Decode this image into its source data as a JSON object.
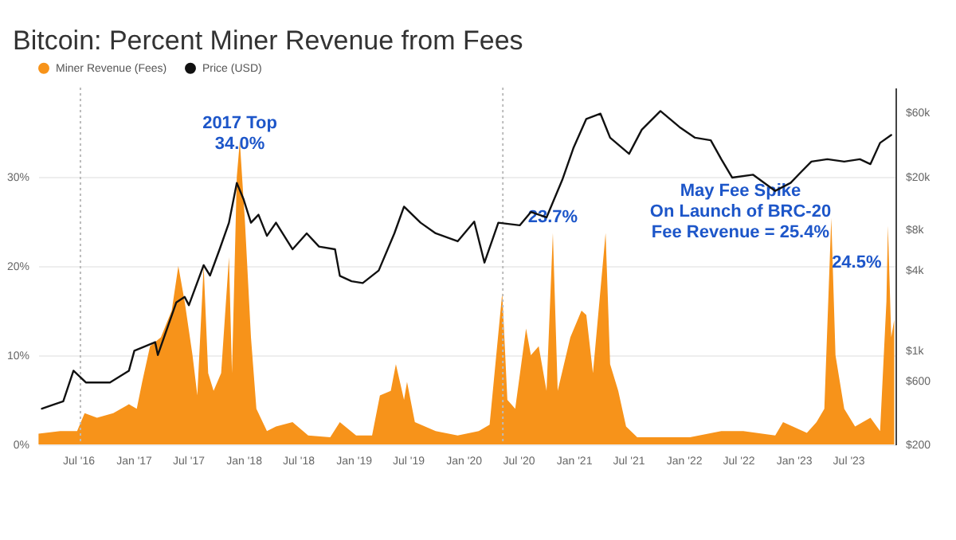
{
  "chart_data": {
    "type": "area",
    "title": "Bitcoin: Percent Miner Revenue from Fees",
    "xlim": [
      "2016-02-20",
      "2023-12-05"
    ],
    "xticks": [
      {
        "value": "2016-07-01",
        "label": "Jul '16"
      },
      {
        "value": "2017-01-01",
        "label": "Jan '17"
      },
      {
        "value": "2017-07-01",
        "label": "Jul '17"
      },
      {
        "value": "2018-01-01",
        "label": "Jan '18"
      },
      {
        "value": "2018-07-01",
        "label": "Jul '18"
      },
      {
        "value": "2019-01-01",
        "label": "Jan '19"
      },
      {
        "value": "2019-07-01",
        "label": "Jul '19"
      },
      {
        "value": "2020-01-01",
        "label": "Jan '20"
      },
      {
        "value": "2020-07-01",
        "label": "Jul '20"
      },
      {
        "value": "2021-01-01",
        "label": "Jan '21"
      },
      {
        "value": "2021-07-01",
        "label": "Jul '21"
      },
      {
        "value": "2022-01-01",
        "label": "Jan '22"
      },
      {
        "value": "2022-07-01",
        "label": "Jul '22"
      },
      {
        "value": "2023-01-01",
        "label": "Jan '23"
      },
      {
        "value": "2023-07-01",
        "label": "Jul '23"
      }
    ],
    "ylim": [
      0,
      40
    ],
    "yticks": [
      {
        "value": 0,
        "label": "0%"
      },
      {
        "value": 10,
        "label": "10%"
      },
      {
        "value": 20,
        "label": "20%"
      },
      {
        "value": 30,
        "label": "30%"
      }
    ],
    "y2lim": [
      200,
      92000
    ],
    "y2ticks": [
      {
        "value": 200,
        "label": "$200"
      },
      {
        "value": 600,
        "label": "$600"
      },
      {
        "value": 1000,
        "label": "$1k"
      },
      {
        "value": 4000,
        "label": "$4k"
      },
      {
        "value": 8000,
        "label": "$8k"
      },
      {
        "value": 20000,
        "label": "$20k"
      },
      {
        "value": 60000,
        "label": "$60k"
      }
    ],
    "log": "y2",
    "grid": "y",
    "legend": "top left",
    "series": [
      {
        "name": "Miner Revenue (Fees)",
        "type": "area",
        "color": "#f7931a",
        "x": [
          "2016-02-21",
          "2016-05-03",
          "2016-06-28",
          "2016-07-23",
          "2016-09-02",
          "2016-10-26",
          "2016-12-17",
          "2017-01-12",
          "2017-01-30",
          "2017-02-25",
          "2017-04-02",
          "2017-05-08",
          "2017-05-30",
          "2017-06-20",
          "2017-07-16",
          "2017-08-01",
          "2017-08-22",
          "2017-09-06",
          "2017-09-24",
          "2017-10-19",
          "2017-11-14",
          "2017-11-24",
          "2017-12-10",
          "2017-12-20",
          "2018-01-06",
          "2018-01-26",
          "2018-02-13",
          "2018-03-20",
          "2018-04-19",
          "2018-06-13",
          "2018-08-04",
          "2018-10-16",
          "2018-11-17",
          "2019-01-10",
          "2019-03-04",
          "2019-03-30",
          "2019-05-05",
          "2019-05-22",
          "2019-06-18",
          "2019-06-28",
          "2019-07-24",
          "2019-10-01",
          "2019-12-13",
          "2020-02-21",
          "2020-03-28",
          "2020-05-09",
          "2020-05-26",
          "2020-06-21",
          "2020-07-27",
          "2020-08-12",
          "2020-09-07",
          "2020-10-03",
          "2020-10-24",
          "2020-11-09",
          "2020-12-21",
          "2021-01-27",
          "2021-02-12",
          "2021-03-06",
          "2021-04-17",
          "2021-05-02",
          "2021-05-29",
          "2021-06-24",
          "2021-07-31",
          "2022-01-22",
          "2022-05-06",
          "2022-07-18",
          "2022-11-01",
          "2022-11-27",
          "2023-02-14",
          "2023-03-18",
          "2023-04-13",
          "2023-05-06",
          "2023-05-20",
          "2023-06-18",
          "2023-07-24",
          "2023-09-13",
          "2023-10-15",
          "2023-11-05",
          "2023-11-10",
          "2023-11-21",
          "2023-12-01"
        ],
        "values": [
          1.2,
          1.5,
          1.5,
          3.5,
          3.0,
          3.5,
          4.5,
          4.0,
          7.0,
          11.0,
          12.0,
          15.0,
          20.0,
          16.0,
          10.0,
          5.5,
          20.0,
          8.0,
          6.0,
          8.0,
          21.0,
          8.0,
          30.0,
          34.0,
          25.0,
          12.0,
          4.0,
          1.5,
          2.0,
          2.5,
          1.0,
          0.8,
          2.5,
          1.0,
          1.0,
          5.5,
          6.0,
          9.0,
          5.0,
          7.0,
          2.5,
          1.5,
          1.0,
          1.5,
          2.2,
          17.0,
          5.0,
          4.0,
          13.0,
          10.0,
          11.0,
          6.0,
          23.7,
          6.0,
          12.0,
          15.0,
          14.5,
          8.0,
          23.7,
          9.0,
          6.0,
          2.0,
          0.8,
          0.8,
          1.5,
          1.5,
          1.0,
          2.5,
          1.3,
          2.5,
          4.0,
          25.4,
          10.0,
          4.0,
          2.0,
          3.0,
          1.5,
          16.0,
          24.5,
          12.0,
          14.0
        ]
      },
      {
        "name": "Price (USD)",
        "type": "line",
        "axis": "y2",
        "color": "#111111",
        "x": [
          "2016-03-03",
          "2016-05-13",
          "2016-06-16",
          "2016-07-27",
          "2016-10-15",
          "2016-12-17",
          "2017-01-04",
          "2017-03-14",
          "2017-03-23",
          "2017-05-23",
          "2017-06-20",
          "2017-07-04",
          "2017-08-22",
          "2017-09-12",
          "2017-10-14",
          "2017-11-14",
          "2017-12-10",
          "2018-01-01",
          "2018-01-26",
          "2018-02-20",
          "2018-03-20",
          "2018-04-19",
          "2018-06-13",
          "2018-07-30",
          "2018-09-09",
          "2018-11-01",
          "2018-11-17",
          "2018-12-26",
          "2019-02-01",
          "2019-03-26",
          "2019-05-17",
          "2019-06-18",
          "2019-08-12",
          "2019-10-01",
          "2019-12-13",
          "2020-02-06",
          "2020-03-11",
          "2020-04-26",
          "2020-07-06",
          "2020-08-12",
          "2020-10-03",
          "2020-11-24",
          "2020-12-31",
          "2021-02-12",
          "2021-03-31",
          "2021-05-02",
          "2021-07-04",
          "2021-08-15",
          "2021-10-16",
          "2021-12-18",
          "2022-02-08",
          "2022-04-01",
          "2022-05-06",
          "2022-06-11",
          "2022-08-19",
          "2022-11-01",
          "2022-12-22",
          "2023-01-25",
          "2023-03-01",
          "2023-04-23",
          "2023-06-18",
          "2023-08-09",
          "2023-09-13",
          "2023-10-15",
          "2023-11-21"
        ],
        "values": [
          370,
          420,
          710,
          580,
          580,
          710,
          1000,
          1160,
          930,
          2290,
          2520,
          2190,
          4350,
          3640,
          5720,
          9030,
          17900,
          13600,
          9030,
          10350,
          7200,
          9030,
          5720,
          7520,
          5990,
          5720,
          3620,
          3300,
          3200,
          3970,
          7520,
          11900,
          9030,
          7520,
          6560,
          9210,
          4550,
          9030,
          8630,
          10850,
          9890,
          18800,
          32500,
          53700,
          58800,
          38900,
          29500,
          44600,
          61500,
          46800,
          38900,
          37200,
          26900,
          19600,
          20600,
          15600,
          17900,
          21500,
          25800,
          26900,
          25800,
          26900,
          24700,
          35600,
          40800
        ]
      }
    ],
    "ref_lines": [
      {
        "axis": "x",
        "value": "2016-07-09",
        "color": "#bbbbbb",
        "line_style": "dotted"
      },
      {
        "axis": "x",
        "value": "2020-05-11",
        "color": "#bbbbbb",
        "line_style": "dotted"
      }
    ],
    "annotations": [
      {
        "text": "2017 Top\n34.0%",
        "x": "2017-12-20",
        "y": 34.0
      },
      {
        "text": "23.7%",
        "x": "2020-10-24",
        "y": 23.7
      },
      {
        "text": "May Fee Spike\nOn Launch of BRC-20\nFee Revenue = 25.4%",
        "x": "2023-05-06",
        "y": 25.4
      },
      {
        "text": "24.5%",
        "x": "2023-11-10",
        "y": 24.5
      }
    ]
  }
}
